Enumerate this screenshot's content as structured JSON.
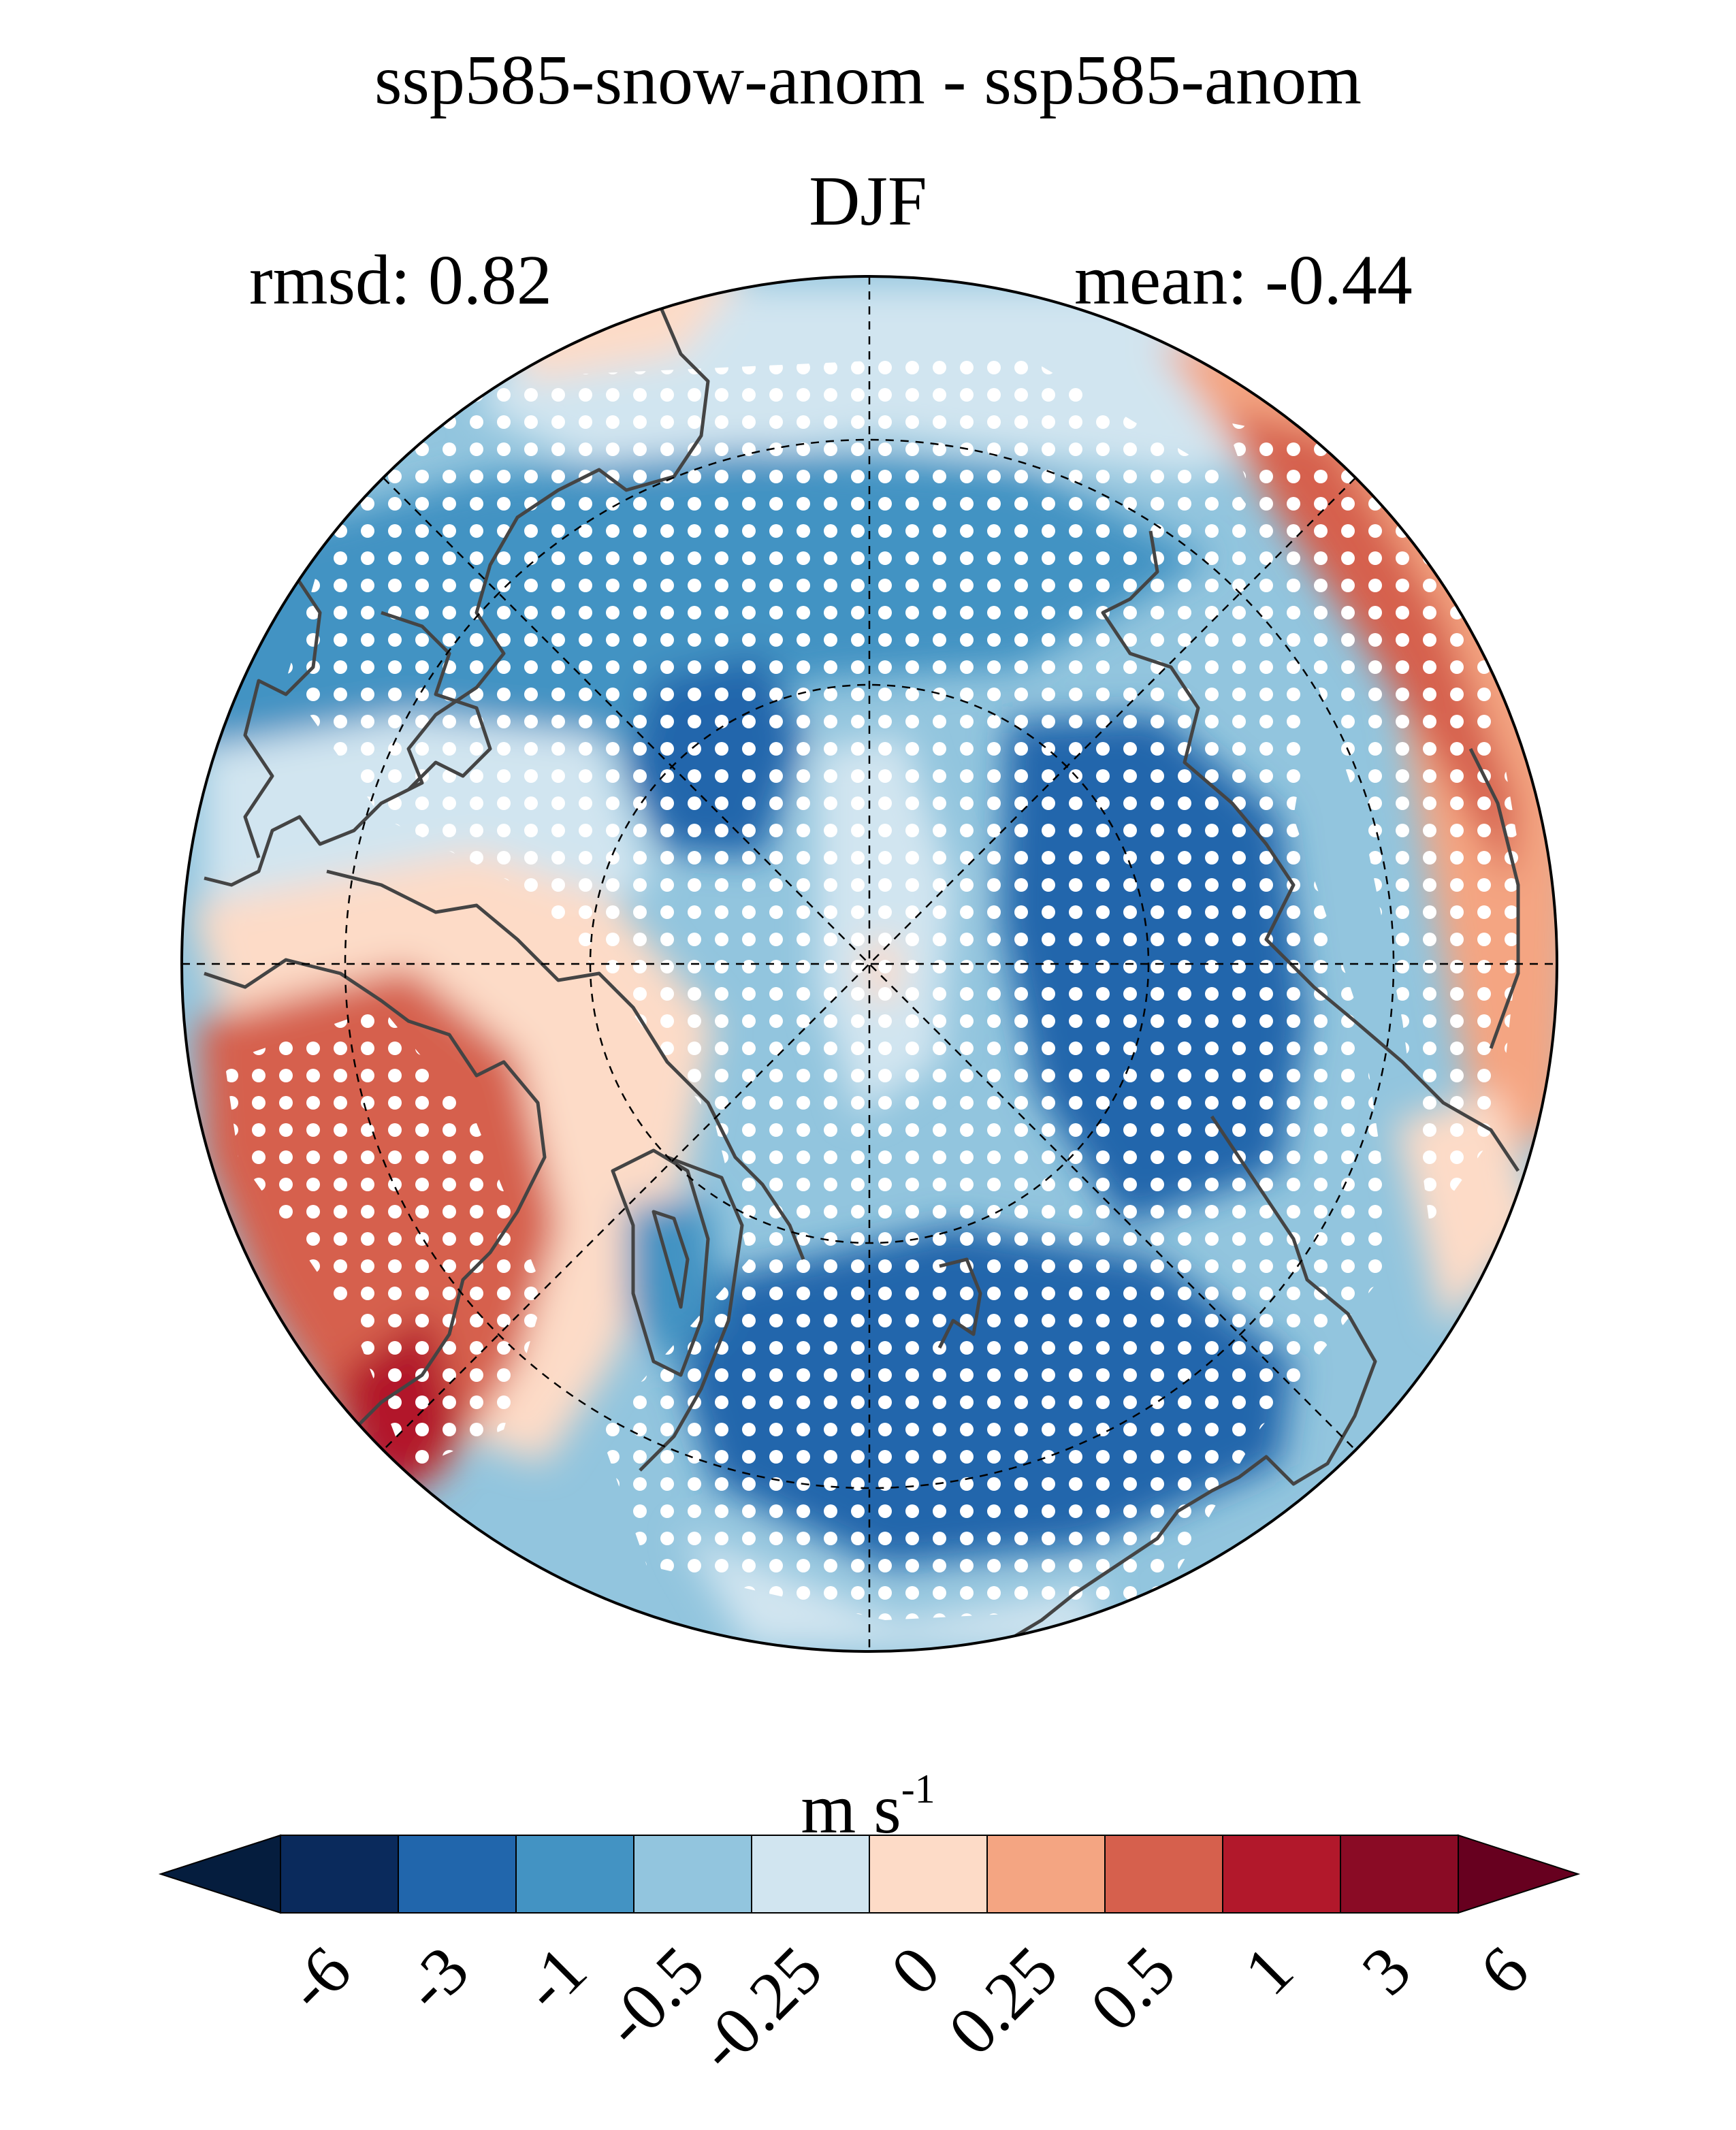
{
  "title": "ssp585-snow-anom - ssp585-anom",
  "season": "DJF",
  "stats": {
    "rmsd": "rmsd: 0.82",
    "mean": "mean: -0.44"
  },
  "map": {
    "projection": "north polar stereographic",
    "hatching": "white stippling marks significant regions",
    "coastline_color": "#444444"
  },
  "colorbar": {
    "unit_base": "m s",
    "unit_exp": "-1",
    "levels": [
      "-6",
      "-3",
      "-1",
      "-0.5",
      "-0.25",
      "0",
      "0.25",
      "0.5",
      "1",
      "3",
      "6"
    ],
    "colors": [
      "#0a2a5c",
      "#2166ac",
      "#4393c3",
      "#92c5de",
      "#d1e5f0",
      "#fddbc7",
      "#f4a582",
      "#d6604d",
      "#b2182b",
      "#8a0b25"
    ],
    "under_color": "#051d3e",
    "over_color": "#67001f"
  }
}
